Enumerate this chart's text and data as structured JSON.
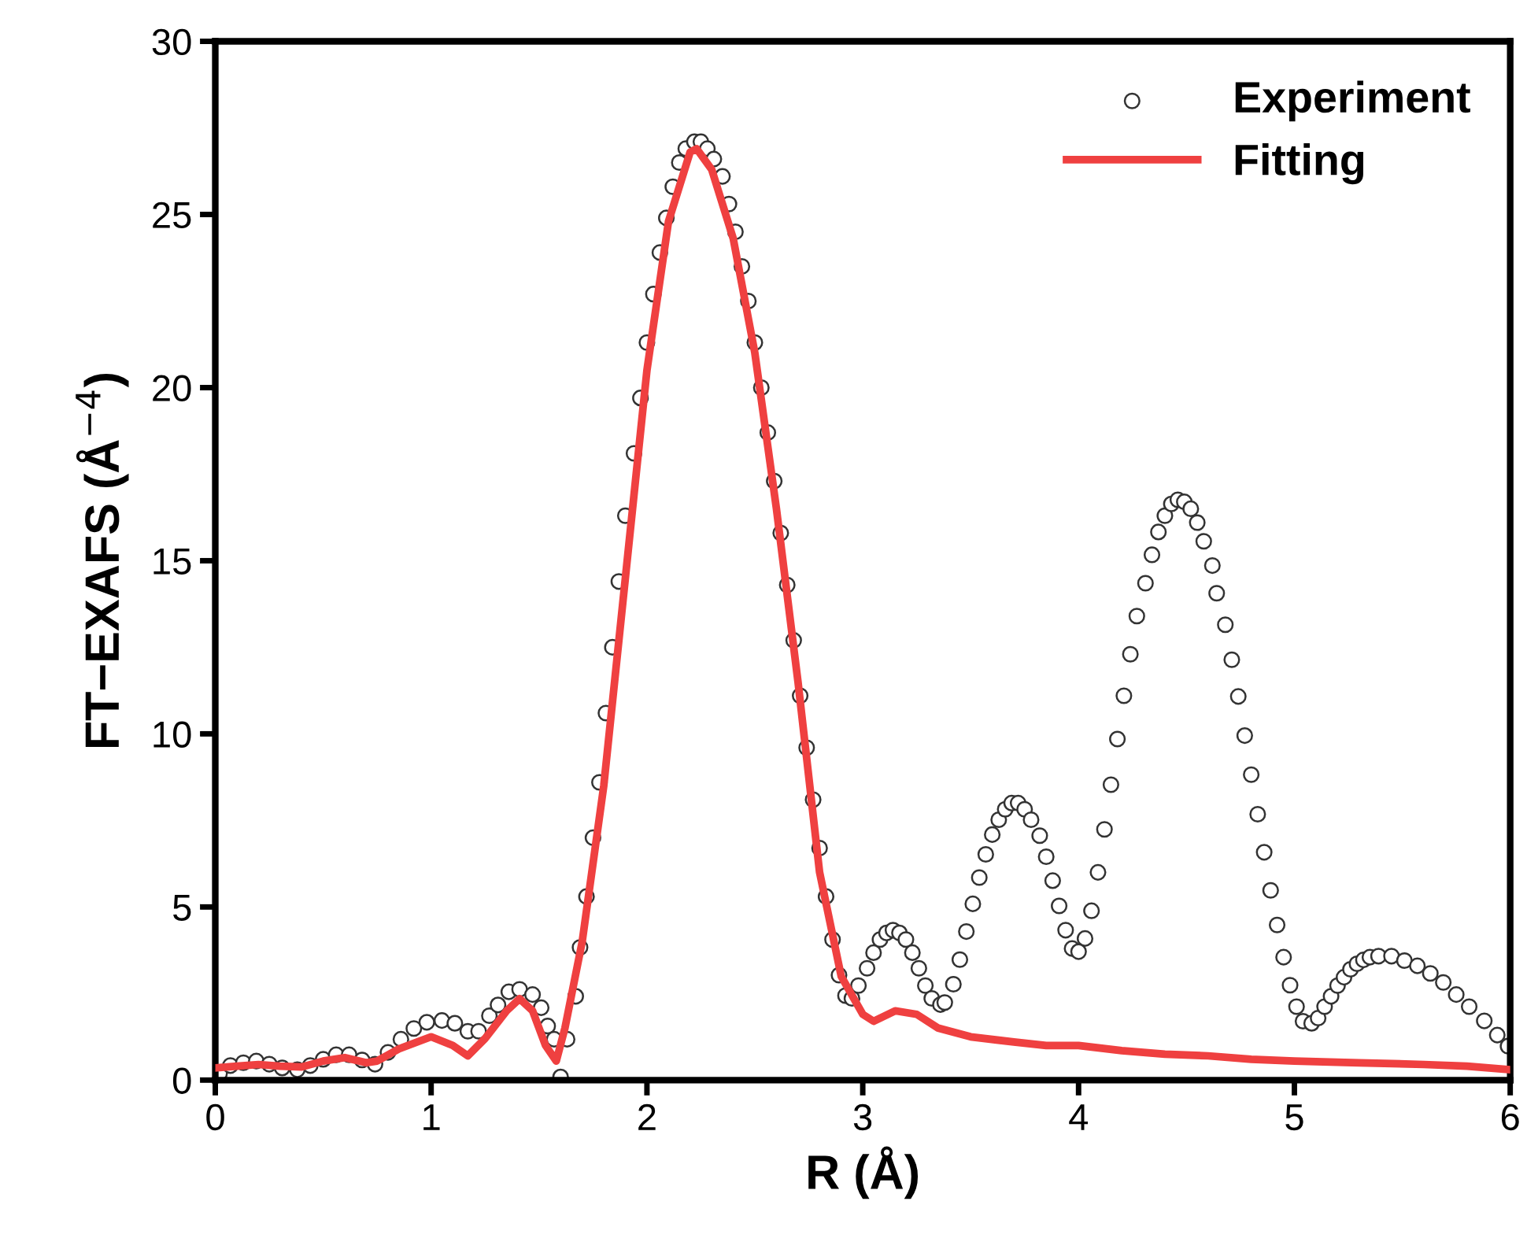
{
  "chart_data": {
    "type": "line",
    "xlabel": "R (Å)",
    "ylabel": "FT−EXAFS (Å$^{−4}$)",
    "xlim": [
      0,
      6
    ],
    "ylim": [
      0,
      30
    ],
    "xticks": [
      0,
      1,
      2,
      3,
      4,
      5,
      6
    ],
    "yticks": [
      0,
      5,
      10,
      15,
      20,
      25,
      30
    ],
    "grid": false,
    "legend": "top right",
    "series": [
      {
        "name": "Experiment",
        "type": "scatter",
        "marker": "circle",
        "color": "#333333",
        "x": [
          0.02,
          0.07,
          0.13,
          0.19,
          0.25,
          0.31,
          0.38,
          0.44,
          0.5,
          0.56,
          0.62,
          0.68,
          0.74,
          0.8,
          0.86,
          0.92,
          0.98,
          1.05,
          1.11,
          1.17,
          1.22,
          1.27,
          1.31,
          1.36,
          1.41,
          1.47,
          1.51,
          1.54,
          1.57,
          1.6,
          1.63,
          1.67,
          1.69,
          1.72,
          1.75,
          1.78,
          1.81,
          1.84,
          1.87,
          1.9,
          1.94,
          1.97,
          2.0,
          2.03,
          2.06,
          2.09,
          2.12,
          2.15,
          2.18,
          2.22,
          2.25,
          2.28,
          2.31,
          2.35,
          2.38,
          2.41,
          2.44,
          2.47,
          2.5,
          2.53,
          2.56,
          2.59,
          2.62,
          2.65,
          2.68,
          2.71,
          2.74,
          2.77,
          2.8,
          2.83,
          2.86,
          2.89,
          2.92,
          2.95,
          2.98,
          3.02,
          3.05,
          3.08,
          3.11,
          3.14,
          3.17,
          3.2,
          3.23,
          3.26,
          3.29,
          3.32,
          3.36,
          3.38,
          3.42,
          3.45,
          3.48,
          3.51,
          3.54,
          3.57,
          3.6,
          3.63,
          3.66,
          3.69,
          3.72,
          3.75,
          3.78,
          3.82,
          3.85,
          3.88,
          3.91,
          3.94,
          3.97,
          4.0,
          4.03,
          4.06,
          4.09,
          4.12,
          4.15,
          4.18,
          4.21,
          4.24,
          4.27,
          4.31,
          4.34,
          4.37,
          4.4,
          4.43,
          4.46,
          4.49,
          4.52,
          4.55,
          4.58,
          4.62,
          4.64,
          4.68,
          4.71,
          4.74,
          4.77,
          4.8,
          4.83,
          4.86,
          4.89,
          4.92,
          4.95,
          4.98,
          5.01,
          5.04,
          5.08,
          5.11,
          5.14,
          5.17,
          5.2,
          5.23,
          5.26,
          5.29,
          5.32,
          5.35,
          5.39,
          5.45,
          5.51,
          5.57,
          5.63,
          5.69,
          5.75,
          5.81,
          5.88,
          5.94,
          5.99
        ],
        "values": [
          0.2,
          0.42,
          0.5,
          0.55,
          0.46,
          0.35,
          0.3,
          0.42,
          0.6,
          0.73,
          0.73,
          0.58,
          0.46,
          0.8,
          1.18,
          1.49,
          1.67,
          1.72,
          1.64,
          1.41,
          1.41,
          1.86,
          2.17,
          2.55,
          2.62,
          2.47,
          2.09,
          1.56,
          1.18,
          0.09,
          1.18,
          2.42,
          3.83,
          5.3,
          7.0,
          8.6,
          10.6,
          12.5,
          14.4,
          16.3,
          18.1,
          19.7,
          21.3,
          22.7,
          23.9,
          24.9,
          25.8,
          26.5,
          26.9,
          27.1,
          27.1,
          26.9,
          26.6,
          26.1,
          25.3,
          24.5,
          23.5,
          22.5,
          21.3,
          20.0,
          18.7,
          17.3,
          15.8,
          14.3,
          12.7,
          11.1,
          9.6,
          8.1,
          6.7,
          5.3,
          4.06,
          3.03,
          2.44,
          2.36,
          2.73,
          3.23,
          3.68,
          4.06,
          4.25,
          4.33,
          4.25,
          4.06,
          3.68,
          3.23,
          2.73,
          2.36,
          2.18,
          2.24,
          2.77,
          3.48,
          4.29,
          5.09,
          5.85,
          6.52,
          7.09,
          7.52,
          7.82,
          8.0,
          8.0,
          7.82,
          7.52,
          7.06,
          6.45,
          5.76,
          5.03,
          4.33,
          3.8,
          3.71,
          4.09,
          4.89,
          6.0,
          7.24,
          8.53,
          9.85,
          11.1,
          12.3,
          13.4,
          14.35,
          15.17,
          15.83,
          16.3,
          16.64,
          16.76,
          16.7,
          16.5,
          16.1,
          15.56,
          14.86,
          14.06,
          13.15,
          12.14,
          11.08,
          9.95,
          8.82,
          7.68,
          6.58,
          5.48,
          4.48,
          3.55,
          2.74,
          2.12,
          1.7,
          1.64,
          1.79,
          2.12,
          2.42,
          2.73,
          2.97,
          3.2,
          3.36,
          3.47,
          3.55,
          3.58,
          3.58,
          3.45,
          3.3,
          3.08,
          2.82,
          2.47,
          2.12,
          1.71,
          1.3,
          0.98
        ]
      },
      {
        "name": "Fitting",
        "color": "#ef4040",
        "line_style": "solid",
        "x": [
          0,
          0.1,
          0.2,
          0.3,
          0.4,
          0.5,
          0.6,
          0.7,
          0.75,
          0.85,
          1.0,
          1.1,
          1.17,
          1.25,
          1.35,
          1.41,
          1.47,
          1.53,
          1.58,
          1.62,
          1.7,
          1.8,
          1.9,
          2.0,
          2.1,
          2.2,
          2.23,
          2.3,
          2.4,
          2.5,
          2.6,
          2.7,
          2.8,
          2.9,
          3.0,
          3.05,
          3.15,
          3.25,
          3.35,
          3.5,
          3.7,
          3.85,
          4.0,
          4.2,
          4.4,
          4.6,
          4.8,
          5.0,
          5.3,
          5.6,
          5.8,
          6.0
        ],
        "values": [
          0.35,
          0.4,
          0.45,
          0.4,
          0.38,
          0.55,
          0.65,
          0.5,
          0.55,
          0.9,
          1.25,
          1.0,
          0.7,
          1.2,
          2.0,
          2.35,
          2.0,
          1.0,
          0.55,
          1.5,
          4.0,
          8.5,
          14.5,
          20.5,
          24.8,
          26.8,
          26.9,
          26.3,
          24.3,
          21.0,
          16.5,
          11.5,
          6.0,
          3.0,
          1.9,
          1.7,
          2.0,
          1.9,
          1.5,
          1.25,
          1.1,
          1.0,
          1.0,
          0.85,
          0.75,
          0.7,
          0.6,
          0.55,
          0.5,
          0.45,
          0.4,
          0.3
        ]
      }
    ]
  }
}
